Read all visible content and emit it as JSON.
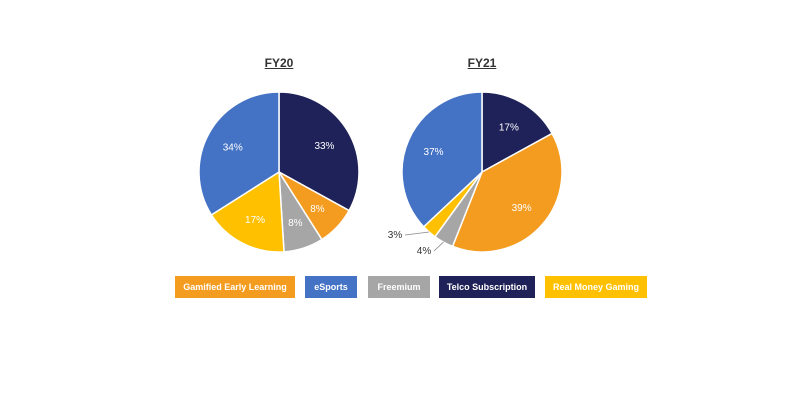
{
  "colors": {
    "gamified": "#F39C1F",
    "esports": "#4472C4",
    "freemium": "#A6A6A6",
    "telco": "#1F2258",
    "real_money": "#FFC000"
  },
  "chart_data": [
    {
      "type": "pie",
      "title": "FY20",
      "slices": [
        {
          "category": "Telco Subscription",
          "value": 33,
          "label": "33%"
        },
        {
          "category": "Gamified Early Learning",
          "value": 8,
          "label": "8%"
        },
        {
          "category": "Freemium",
          "value": 8,
          "label": "8%"
        },
        {
          "category": "Real Money Gaming",
          "value": 17,
          "label": "17%"
        },
        {
          "category": "eSports",
          "value": 34,
          "label": "34%"
        }
      ]
    },
    {
      "type": "pie",
      "title": "FY21",
      "slices": [
        {
          "category": "Telco Subscription",
          "value": 17,
          "label": "17%"
        },
        {
          "category": "Gamified Early Learning",
          "value": 39,
          "label": "39%"
        },
        {
          "category": "Freemium",
          "value": 4,
          "label": "4%"
        },
        {
          "category": "Real Money Gaming",
          "value": 3,
          "label": "3%"
        },
        {
          "category": "eSports",
          "value": 37,
          "label": "37%"
        }
      ]
    }
  ],
  "legend": [
    {
      "label": "Gamified Early Learning",
      "color": "#F39C1F"
    },
    {
      "label": "eSports",
      "color": "#4472C4"
    },
    {
      "label": "Freemium",
      "color": "#A6A6A6"
    },
    {
      "label": "Telco Subscription",
      "color": "#1F2258"
    },
    {
      "label": "Real Money Gaming",
      "color": "#FFC000"
    }
  ]
}
